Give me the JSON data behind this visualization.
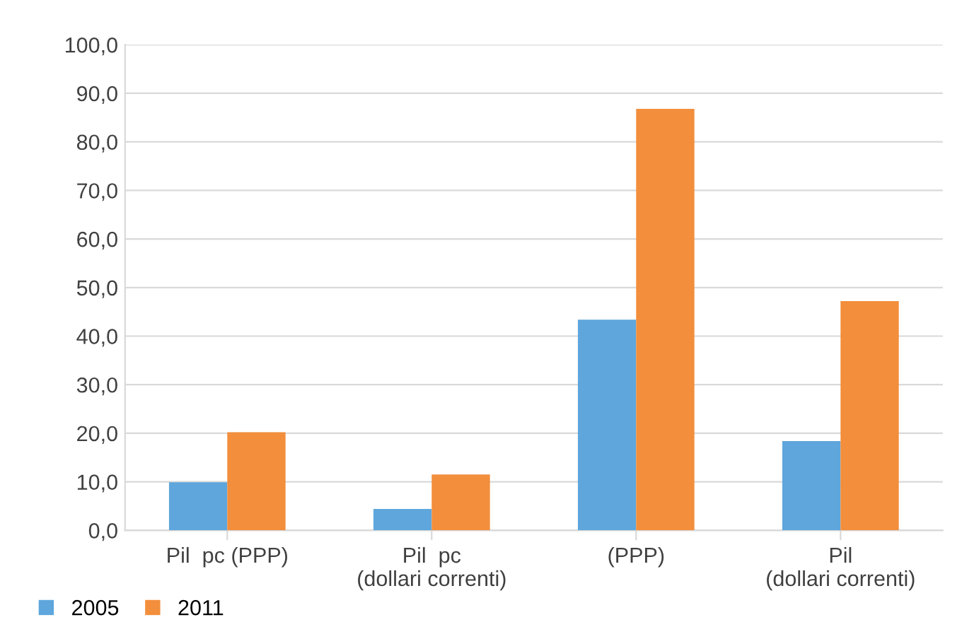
{
  "chart_data": {
    "type": "bar",
    "categories": [
      "Pil  pc (PPP)",
      "Pil  pc\n(dollari correnti)",
      "(PPP)",
      "Pil\n(dollari correnti)"
    ],
    "series": [
      {
        "name": "2005",
        "color": "#5ea6dc",
        "values": [
          9.9,
          4.4,
          43.4,
          18.4
        ]
      },
      {
        "name": "2011",
        "color": "#f28e3c",
        "values": [
          20.2,
          11.5,
          86.8,
          47.2
        ]
      }
    ],
    "ylim": [
      0,
      100
    ],
    "yticks": [
      {
        "value": 0,
        "label": "0,0"
      },
      {
        "value": 10,
        "label": "10,0"
      },
      {
        "value": 20,
        "label": "20,0"
      },
      {
        "value": 30,
        "label": "30,0"
      },
      {
        "value": 40,
        "label": "40,0"
      },
      {
        "value": 50,
        "label": "50,0"
      },
      {
        "value": 60,
        "label": "60,0"
      },
      {
        "value": 70,
        "label": "70,0"
      },
      {
        "value": 80,
        "label": "80,0"
      },
      {
        "value": 90,
        "label": "90,0"
      },
      {
        "value": 100,
        "label": "100,0"
      }
    ],
    "grid": "y",
    "legend": "bottom left"
  }
}
